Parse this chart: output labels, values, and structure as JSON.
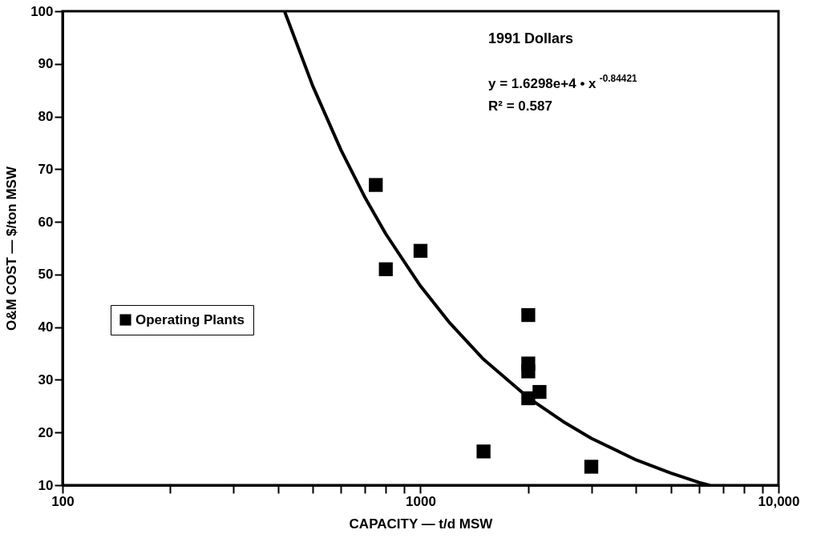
{
  "chart_data": {
    "type": "scatter",
    "xlabel": "CAPACITY  —  t/d MSW",
    "ylabel": "O&M COST  —  $/ton MSW",
    "log": "x",
    "xlim": [
      100,
      10000
    ],
    "ylim": [
      10,
      100
    ],
    "xticks": [
      100,
      {
        "value": 200,
        "label": null
      },
      {
        "value": 300,
        "label": null
      },
      {
        "value": 400,
        "label": null
      },
      {
        "value": 500,
        "label": null
      },
      {
        "value": 600,
        "label": null
      },
      {
        "value": 700,
        "label": null
      },
      {
        "value": 800,
        "label": null
      },
      {
        "value": 900,
        "label": null
      },
      1000,
      {
        "value": 2000,
        "label": null
      },
      {
        "value": 3000,
        "label": null
      },
      {
        "value": 4000,
        "label": null
      },
      {
        "value": 5000,
        "label": null
      },
      {
        "value": 6000,
        "label": null
      },
      {
        "value": 7000,
        "label": null
      },
      {
        "value": 8000,
        "label": null
      },
      {
        "value": 9000,
        "label": null
      },
      {
        "value": 10000,
        "label": "10,000"
      }
    ],
    "yticks": [
      10,
      20,
      30,
      40,
      50,
      60,
      70,
      80,
      90,
      100
    ],
    "grid": false,
    "legend": "left",
    "marker": "square",
    "annotations": [
      "1991 Dollars",
      "y = 1.6298e+4 • x$^{-0.84421}$",
      "R² = 0.587"
    ],
    "series": [
      {
        "name": "Operating Plants",
        "color": "#000000",
        "x": [
          750,
          800,
          1000,
          2000,
          2000,
          2000,
          2000,
          2150,
          1500,
          3000
        ],
        "values": [
          67.0,
          51.0,
          54.5,
          42.3,
          33.1,
          31.6,
          26.5,
          27.7,
          16.4,
          13.5
        ]
      },
      {
        "type": "line",
        "color": "#000000",
        "line_style": "solid",
        "marker": "none",
        "x": [
          417,
          500,
          600,
          700,
          800,
          1000,
          1200,
          1500,
          2000,
          2500,
          3000,
          4000,
          5000,
          6000,
          6400
        ],
        "values": [
          100.0,
          85.8,
          73.6,
          64.6,
          57.7,
          47.8,
          41.0,
          33.9,
          26.6,
          22.1,
          18.9,
          14.8,
          12.3,
          10.5,
          10.0
        ]
      }
    ]
  }
}
